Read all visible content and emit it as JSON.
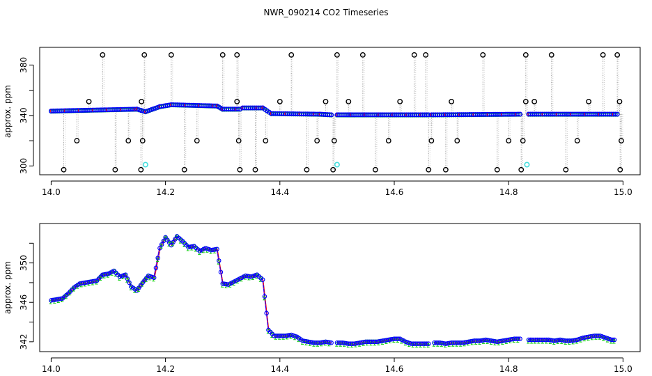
{
  "title": "NWR_090214  CO2 Timeseries",
  "chart_data": [
    {
      "type": "scatter",
      "ylabel": "approx. ppm",
      "xlim": [
        13.98,
        15.03
      ],
      "ylim": [
        293,
        394
      ],
      "x_ticks": [
        14.0,
        14.2,
        14.4,
        14.6,
        14.8,
        15.0
      ],
      "y_ticks": [
        300,
        320,
        340,
        360,
        380
      ],
      "y_tick_labels": [
        "300",
        "",
        "340",
        "",
        "380"
      ],
      "baseline_segments": [
        {
          "x": [
            14.0,
            14.15
          ],
          "y": [
            343.5,
            345.0
          ]
        },
        {
          "x": [
            14.15,
            14.165
          ],
          "y": [
            345.0,
            343.0
          ]
        },
        {
          "x": [
            14.165,
            14.19
          ],
          "y": [
            343.0,
            347.0
          ]
        },
        {
          "x": [
            14.19,
            14.21
          ],
          "y": [
            347.0,
            348.5
          ]
        },
        {
          "x": [
            14.21,
            14.29
          ],
          "y": [
            348.5,
            347.5
          ]
        },
        {
          "x": [
            14.29,
            14.3
          ],
          "y": [
            347.5,
            345.0
          ]
        },
        {
          "x": [
            14.3,
            14.33
          ],
          "y": [
            345.0,
            345.0
          ]
        },
        {
          "x": [
            14.335,
            14.37
          ],
          "y": [
            346.0,
            346.0
          ]
        },
        {
          "x": [
            14.37,
            14.385
          ],
          "y": [
            346.0,
            341.5
          ]
        },
        {
          "x": [
            14.385,
            14.47
          ],
          "y": [
            341.5,
            341.0
          ]
        },
        {
          "x": [
            14.47,
            14.49
          ],
          "y": [
            341.0,
            340.5
          ]
        },
        {
          "x": [
            14.5,
            14.66
          ],
          "y": [
            340.5,
            340.5
          ]
        },
        {
          "x": [
            14.665,
            14.82
          ],
          "y": [
            340.5,
            341.0
          ]
        },
        {
          "x": [
            14.835,
            14.99
          ],
          "y": [
            341.0,
            341.0
          ]
        }
      ],
      "spikes_high_x": [
        14.09,
        14.163,
        14.21,
        14.3,
        14.325,
        14.42,
        14.5,
        14.545,
        14.635,
        14.655,
        14.755,
        14.83,
        14.875,
        14.965,
        14.99
      ],
      "spikes_high_y": 388,
      "spikes_low_x": [
        14.022,
        14.112,
        14.157,
        14.233,
        14.33,
        14.357,
        14.447,
        14.493,
        14.567,
        14.66,
        14.69,
        14.78,
        14.822,
        14.9,
        14.995
      ],
      "spikes_low_y": 297,
      "spikes_mid_x": [
        14.045,
        14.135,
        14.16,
        14.255,
        14.328,
        14.375,
        14.465,
        14.495,
        14.59,
        14.665,
        14.71,
        14.8,
        14.825,
        14.92,
        14.997
      ],
      "spikes_mid_y": 320,
      "spikes_near_x": [
        14.066,
        14.158,
        14.325,
        14.4,
        14.48,
        14.52,
        14.61,
        14.7,
        14.83,
        14.845,
        14.94,
        14.994
      ],
      "spikes_near_y": 351,
      "cyan_points": [
        {
          "x": 14.165,
          "y": 301
        },
        {
          "x": 14.5,
          "y": 301
        },
        {
          "x": 14.832,
          "y": 301
        }
      ]
    },
    {
      "type": "line",
      "ylabel": "approx. ppm",
      "xlim": [
        13.98,
        15.03
      ],
      "ylim": [
        341.0,
        354.0
      ],
      "x_ticks": [
        14.0,
        14.2,
        14.4,
        14.6,
        14.8,
        15.0
      ],
      "y_ticks": [
        342,
        344,
        346,
        348,
        350,
        352
      ],
      "y_tick_labels": [
        "342",
        "",
        "346",
        "",
        "350",
        ""
      ],
      "series": [
        {
          "x": [
            14.0,
            14.01,
            14.02,
            14.03,
            14.04,
            14.05,
            14.06,
            14.07,
            14.08,
            14.09,
            14.1,
            14.11,
            14.12,
            14.13,
            14.14,
            14.15,
            14.16,
            14.17,
            14.18,
            14.19,
            14.2,
            14.21,
            14.22,
            14.23,
            14.24,
            14.25,
            14.26,
            14.27,
            14.28,
            14.29,
            14.3,
            14.31,
            14.32,
            14.33,
            14.34,
            14.35,
            14.36,
            14.37,
            14.38,
            14.39,
            14.4,
            14.41,
            14.42,
            14.43,
            14.44,
            14.45,
            14.46,
            14.47,
            14.48,
            14.49
          ],
          "y": [
            346.2,
            346.3,
            346.4,
            346.9,
            347.5,
            347.9,
            348.0,
            348.1,
            348.2,
            348.8,
            348.9,
            349.2,
            348.6,
            348.8,
            347.6,
            347.2,
            348.0,
            348.7,
            348.5,
            351.5,
            352.6,
            351.8,
            352.7,
            352.2,
            351.6,
            351.7,
            351.2,
            351.5,
            351.3,
            351.4,
            347.9,
            347.8,
            348.1,
            348.4,
            348.7,
            348.6,
            348.8,
            348.3,
            343.2,
            342.6,
            342.6,
            342.6,
            342.7,
            342.5,
            342.1,
            342.0,
            341.9,
            341.9,
            342.0,
            341.9
          ]
        },
        {
          "x": [
            14.5,
            14.51,
            14.52,
            14.53,
            14.54,
            14.55,
            14.56,
            14.57,
            14.58,
            14.59,
            14.6,
            14.61,
            14.62,
            14.63,
            14.64,
            14.65,
            14.66
          ],
          "y": [
            341.9,
            341.9,
            341.8,
            341.8,
            341.9,
            342.0,
            342.0,
            342.0,
            342.1,
            342.2,
            342.3,
            342.3,
            342.0,
            341.8,
            341.8,
            341.8,
            341.8
          ]
        },
        {
          "x": [
            14.67,
            14.68,
            14.69,
            14.7,
            14.71,
            14.72,
            14.73,
            14.74,
            14.75,
            14.76,
            14.77,
            14.78,
            14.79,
            14.8,
            14.81,
            14.82
          ],
          "y": [
            341.9,
            341.9,
            341.8,
            341.9,
            341.9,
            341.9,
            342.0,
            342.1,
            342.1,
            342.2,
            342.1,
            342.0,
            342.1,
            342.2,
            342.3,
            342.3
          ]
        },
        {
          "x": [
            14.835,
            14.85,
            14.86,
            14.87,
            14.88,
            14.89,
            14.9,
            14.91,
            14.92,
            14.93,
            14.94,
            14.95,
            14.96,
            14.97,
            14.98,
            14.985
          ],
          "y": [
            342.2,
            342.2,
            342.2,
            342.2,
            342.1,
            342.2,
            342.1,
            342.1,
            342.2,
            342.4,
            342.5,
            342.6,
            342.6,
            342.4,
            342.2,
            342.2
          ]
        }
      ]
    }
  ],
  "colors": {
    "blue": "#0000ff",
    "green": "#00cc00",
    "red": "#ff0000",
    "purple": "#9900cc",
    "cyan": "#44dddd",
    "gray": "#999999",
    "black": "#000000"
  }
}
